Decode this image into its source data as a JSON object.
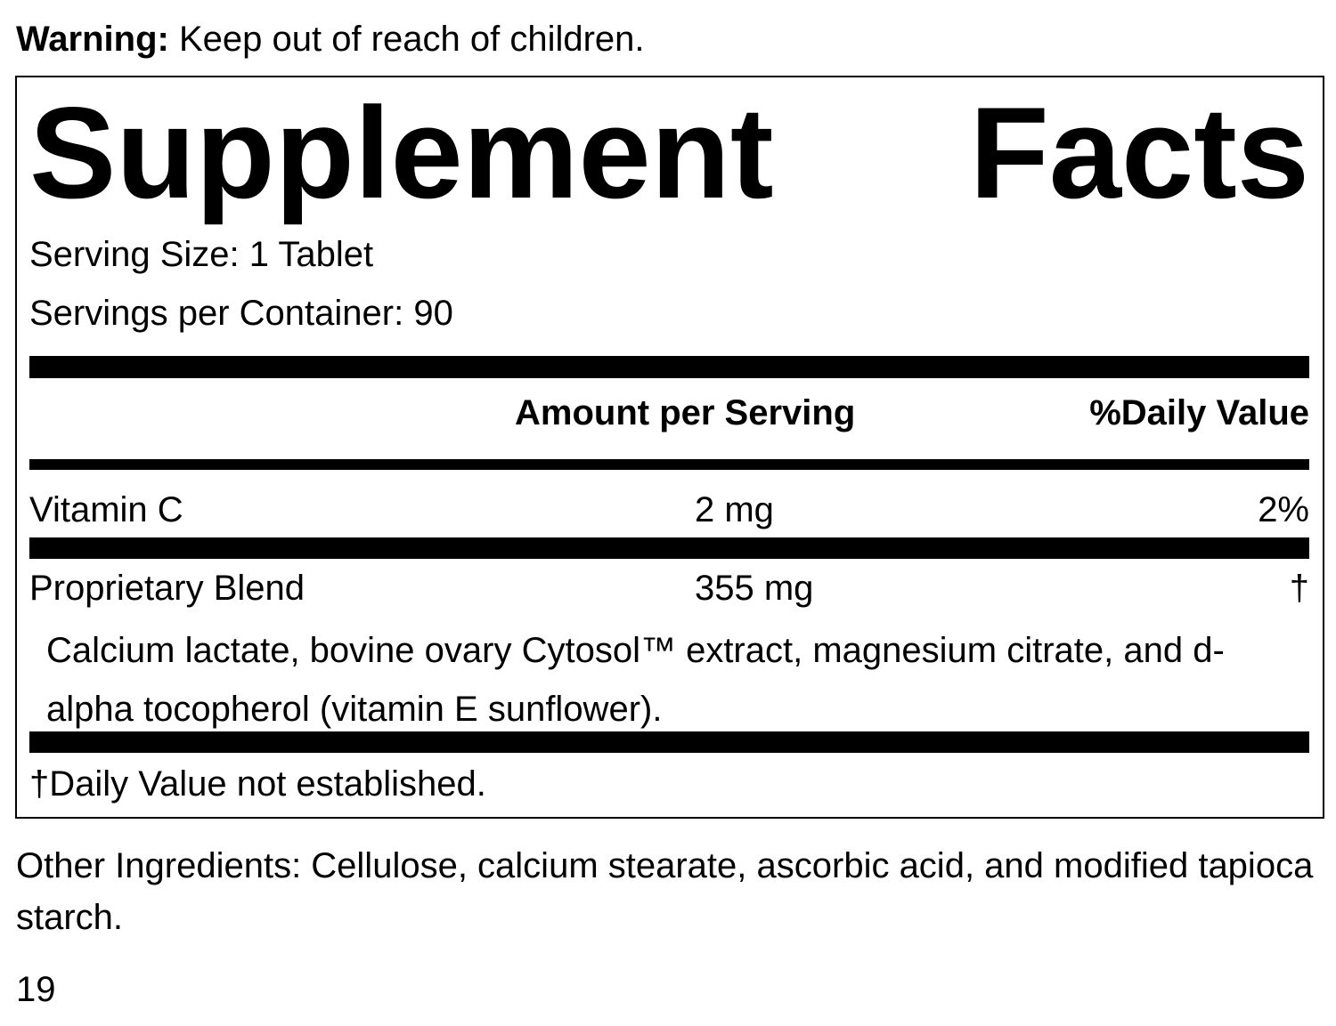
{
  "warning": {
    "label": "Warning:",
    "text": "Keep out of reach of children."
  },
  "panel": {
    "title": "Supplement Facts",
    "serving_size": "Serving Size: 1 Tablet",
    "servings_per_container": "Servings per Container: 90",
    "columns": [
      "Amount per Serving",
      "%Daily Value"
    ],
    "rows": [
      {
        "name": "Vitamin C",
        "amount": "2 mg",
        "daily_value": "2%"
      },
      {
        "name": "Proprietary Blend",
        "amount": "355 mg",
        "daily_value": "†",
        "description": "Calcium lactate, bovine ovary Cytosol™ extract, magnesium citrate, and d-alpha tocopherol (vitamin E sunflower)."
      }
    ],
    "footnote": "†Daily Value not established."
  },
  "other_ingredients": "Other Ingredients: Cellulose, calcium stearate, ascorbic acid, and modified tapioca starch.",
  "page_number": "19"
}
